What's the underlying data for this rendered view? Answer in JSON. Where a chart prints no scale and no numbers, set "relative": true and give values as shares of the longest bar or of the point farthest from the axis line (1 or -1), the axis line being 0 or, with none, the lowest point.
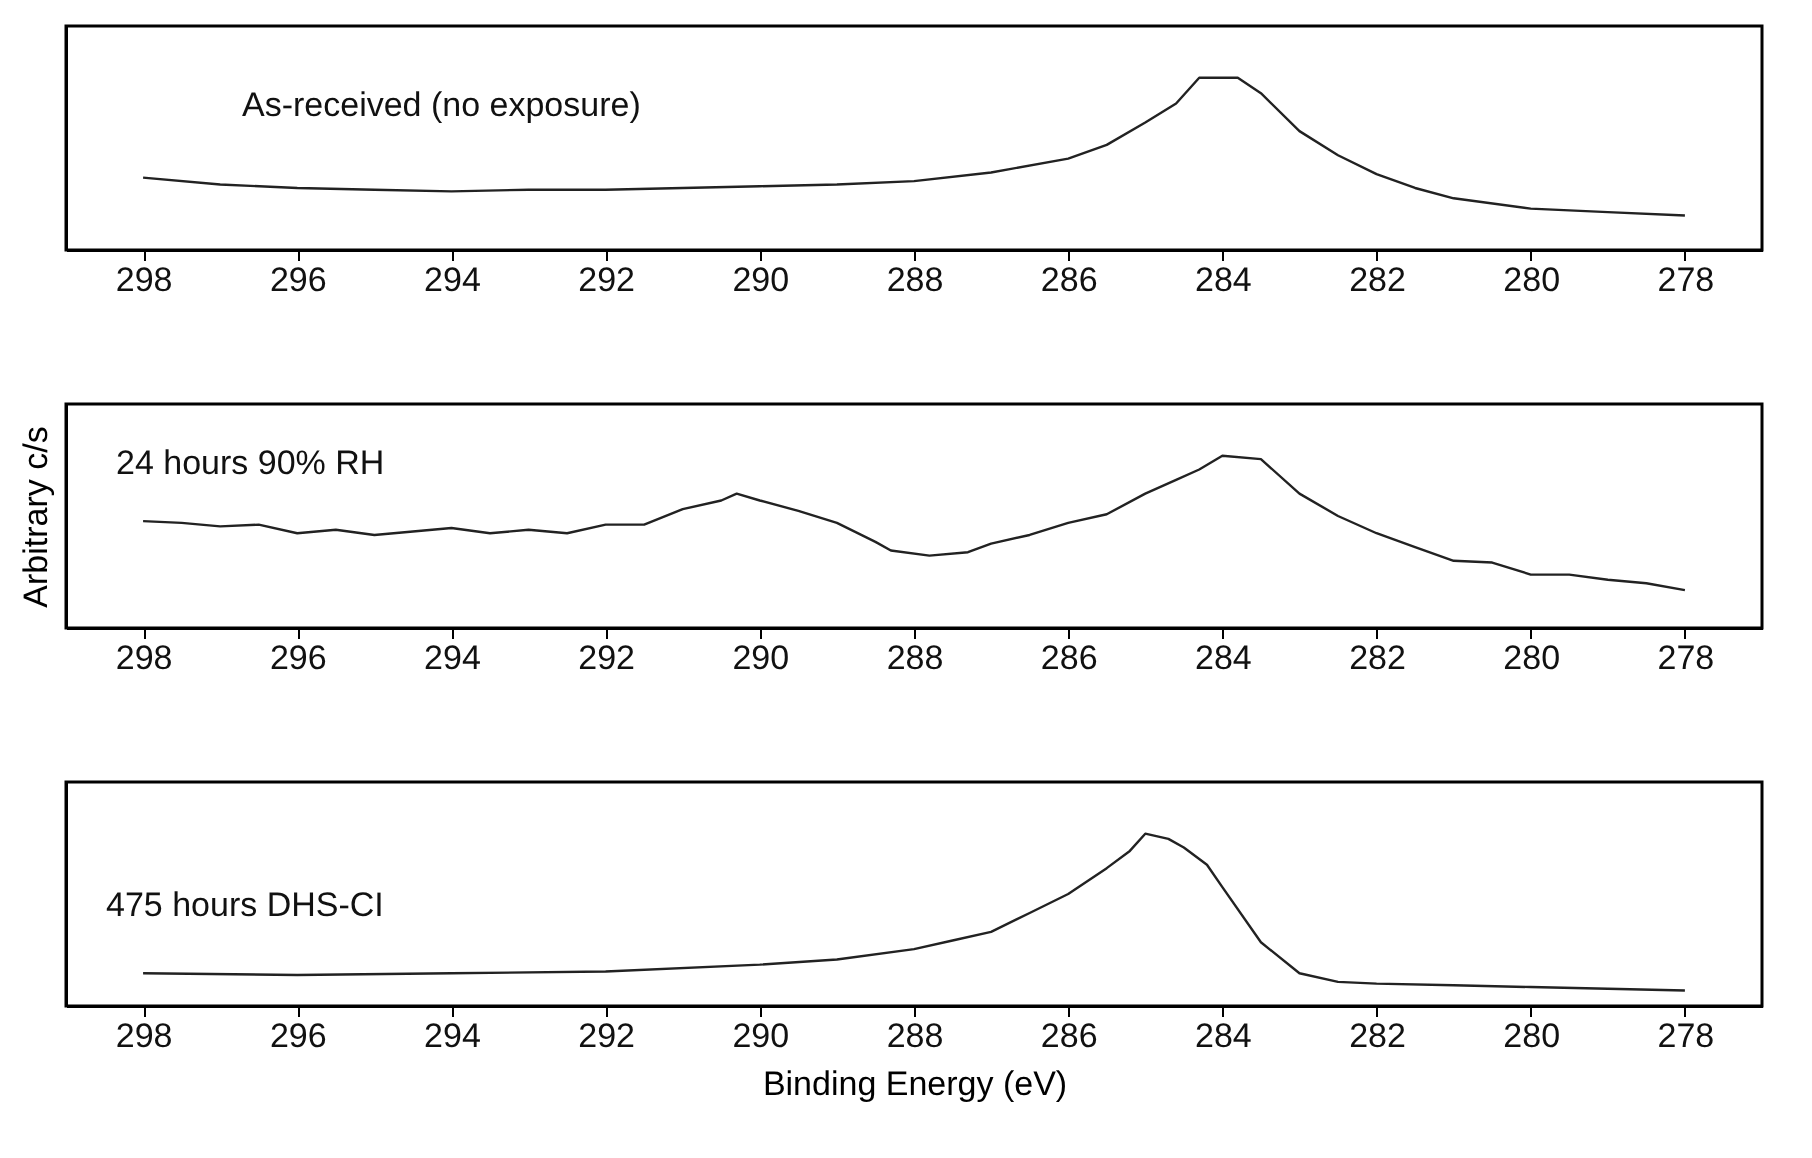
{
  "chart_data": [
    {
      "type": "line",
      "relative": true,
      "tick_labels": "x",
      "annotations": [
        "As-received (no exposure)"
      ],
      "xlim": [
        299,
        277
      ],
      "xticks": [
        298,
        296,
        294,
        292,
        290,
        288,
        286,
        284,
        282,
        280,
        278
      ],
      "series": [
        {
          "color": "#222222",
          "x": [
            298,
            297,
            296,
            295,
            294,
            293,
            292,
            291,
            290,
            289,
            288,
            287,
            286,
            285.5,
            285,
            284.6,
            284.3,
            283.8,
            283.5,
            283,
            282.5,
            282,
            281.5,
            281,
            280,
            279,
            278
          ],
          "values": [
            0.42,
            0.38,
            0.36,
            0.35,
            0.34,
            0.35,
            0.35,
            0.36,
            0.37,
            0.38,
            0.4,
            0.45,
            0.53,
            0.61,
            0.74,
            0.85,
            1,
            1,
            0.91,
            0.69,
            0.55,
            0.44,
            0.36,
            0.3,
            0.24,
            0.22,
            0.2
          ]
        }
      ]
    },
    {
      "type": "line",
      "relative": true,
      "tick_labels": "x",
      "ylabel": "Arbitrary c/s",
      "annotations": [
        "24 hours 90% RH"
      ],
      "xlim": [
        299,
        277
      ],
      "xticks": [
        298,
        296,
        294,
        292,
        290,
        288,
        286,
        284,
        282,
        280,
        278
      ],
      "series": [
        {
          "color": "#222222",
          "x": [
            298,
            297.5,
            297,
            296.5,
            296,
            295.5,
            295,
            294.5,
            294,
            293.5,
            293,
            292.5,
            292,
            291.5,
            291,
            290.5,
            290.3,
            290,
            289.5,
            289,
            288.5,
            288.3,
            287.8,
            287.3,
            287,
            286.5,
            286,
            285.5,
            285,
            284.6,
            284.3,
            284,
            283.5,
            283,
            282.5,
            282,
            281.5,
            281,
            280.5,
            280,
            279.5,
            279,
            278.5,
            278
          ],
          "values": [
            0.62,
            0.61,
            0.59,
            0.6,
            0.55,
            0.57,
            0.54,
            0.56,
            0.58,
            0.55,
            0.57,
            0.55,
            0.6,
            0.6,
            0.69,
            0.74,
            0.78,
            0.74,
            0.68,
            0.61,
            0.5,
            0.45,
            0.42,
            0.44,
            0.49,
            0.54,
            0.61,
            0.66,
            0.78,
            0.86,
            0.92,
            1,
            0.98,
            0.78,
            0.65,
            0.55,
            0.47,
            0.39,
            0.38,
            0.31,
            0.31,
            0.28,
            0.26,
            0.22
          ]
        }
      ]
    },
    {
      "type": "line",
      "relative": true,
      "tick_labels": "x",
      "xlabel": "Binding Energy (eV)",
      "annotations": [
        "475 hours DHS-CI"
      ],
      "xlim": [
        299,
        277
      ],
      "xticks": [
        298,
        296,
        294,
        292,
        290,
        288,
        286,
        284,
        282,
        280,
        278
      ],
      "series": [
        {
          "color": "#222222",
          "x": [
            298,
            296,
            294,
            292,
            290,
            289,
            288,
            287.5,
            287,
            286.5,
            286,
            285.5,
            285.2,
            285,
            284.7,
            284.5,
            284.2,
            284,
            283.5,
            283,
            282.5,
            282,
            281,
            280,
            279,
            278
          ],
          "values": [
            0.19,
            0.18,
            0.19,
            0.2,
            0.24,
            0.27,
            0.33,
            0.38,
            0.43,
            0.54,
            0.65,
            0.8,
            0.9,
            1,
            0.97,
            0.92,
            0.82,
            0.69,
            0.37,
            0.19,
            0.14,
            0.13,
            0.12,
            0.11,
            0.1,
            0.09
          ]
        }
      ]
    }
  ]
}
